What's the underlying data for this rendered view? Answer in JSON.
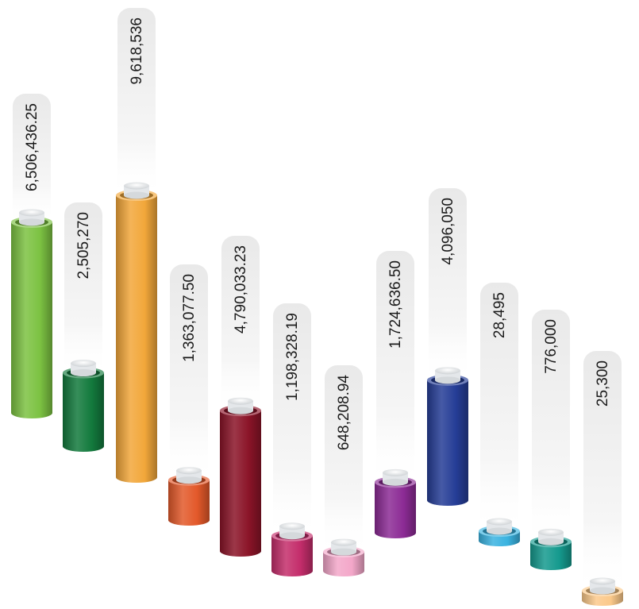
{
  "chart_data": {
    "type": "bar",
    "title": "",
    "xlabel": "",
    "ylabel": "",
    "grid": false,
    "legend": "none",
    "categories": [
      "",
      "",
      "",
      "",
      "",
      "",
      "",
      "",
      "",
      "",
      "",
      ""
    ],
    "values": [
      6506436.25,
      2505270,
      9618536,
      1363077.5,
      4790033.23,
      1198328.19,
      648208.94,
      1724636.5,
      4096050,
      28495,
      776000,
      25300
    ],
    "labels": [
      "6,506,436.25",
      "2,505,270",
      "9,618,536",
      "1,363,077.50",
      "4,790,033.23",
      "1,198,328.19",
      "648,208.94",
      "1,724,636.50",
      "4,096,050",
      "28,495",
      "776,000",
      "25,300"
    ],
    "colors": [
      "#7cc242",
      "#137a3d",
      "#f2a73a",
      "#e3592a",
      "#8b1428",
      "#c42d6b",
      "#f3a7c9",
      "#8c2b95",
      "#253d96",
      "#3ab3e0",
      "#159a8e",
      "#fbc98a"
    ]
  }
}
